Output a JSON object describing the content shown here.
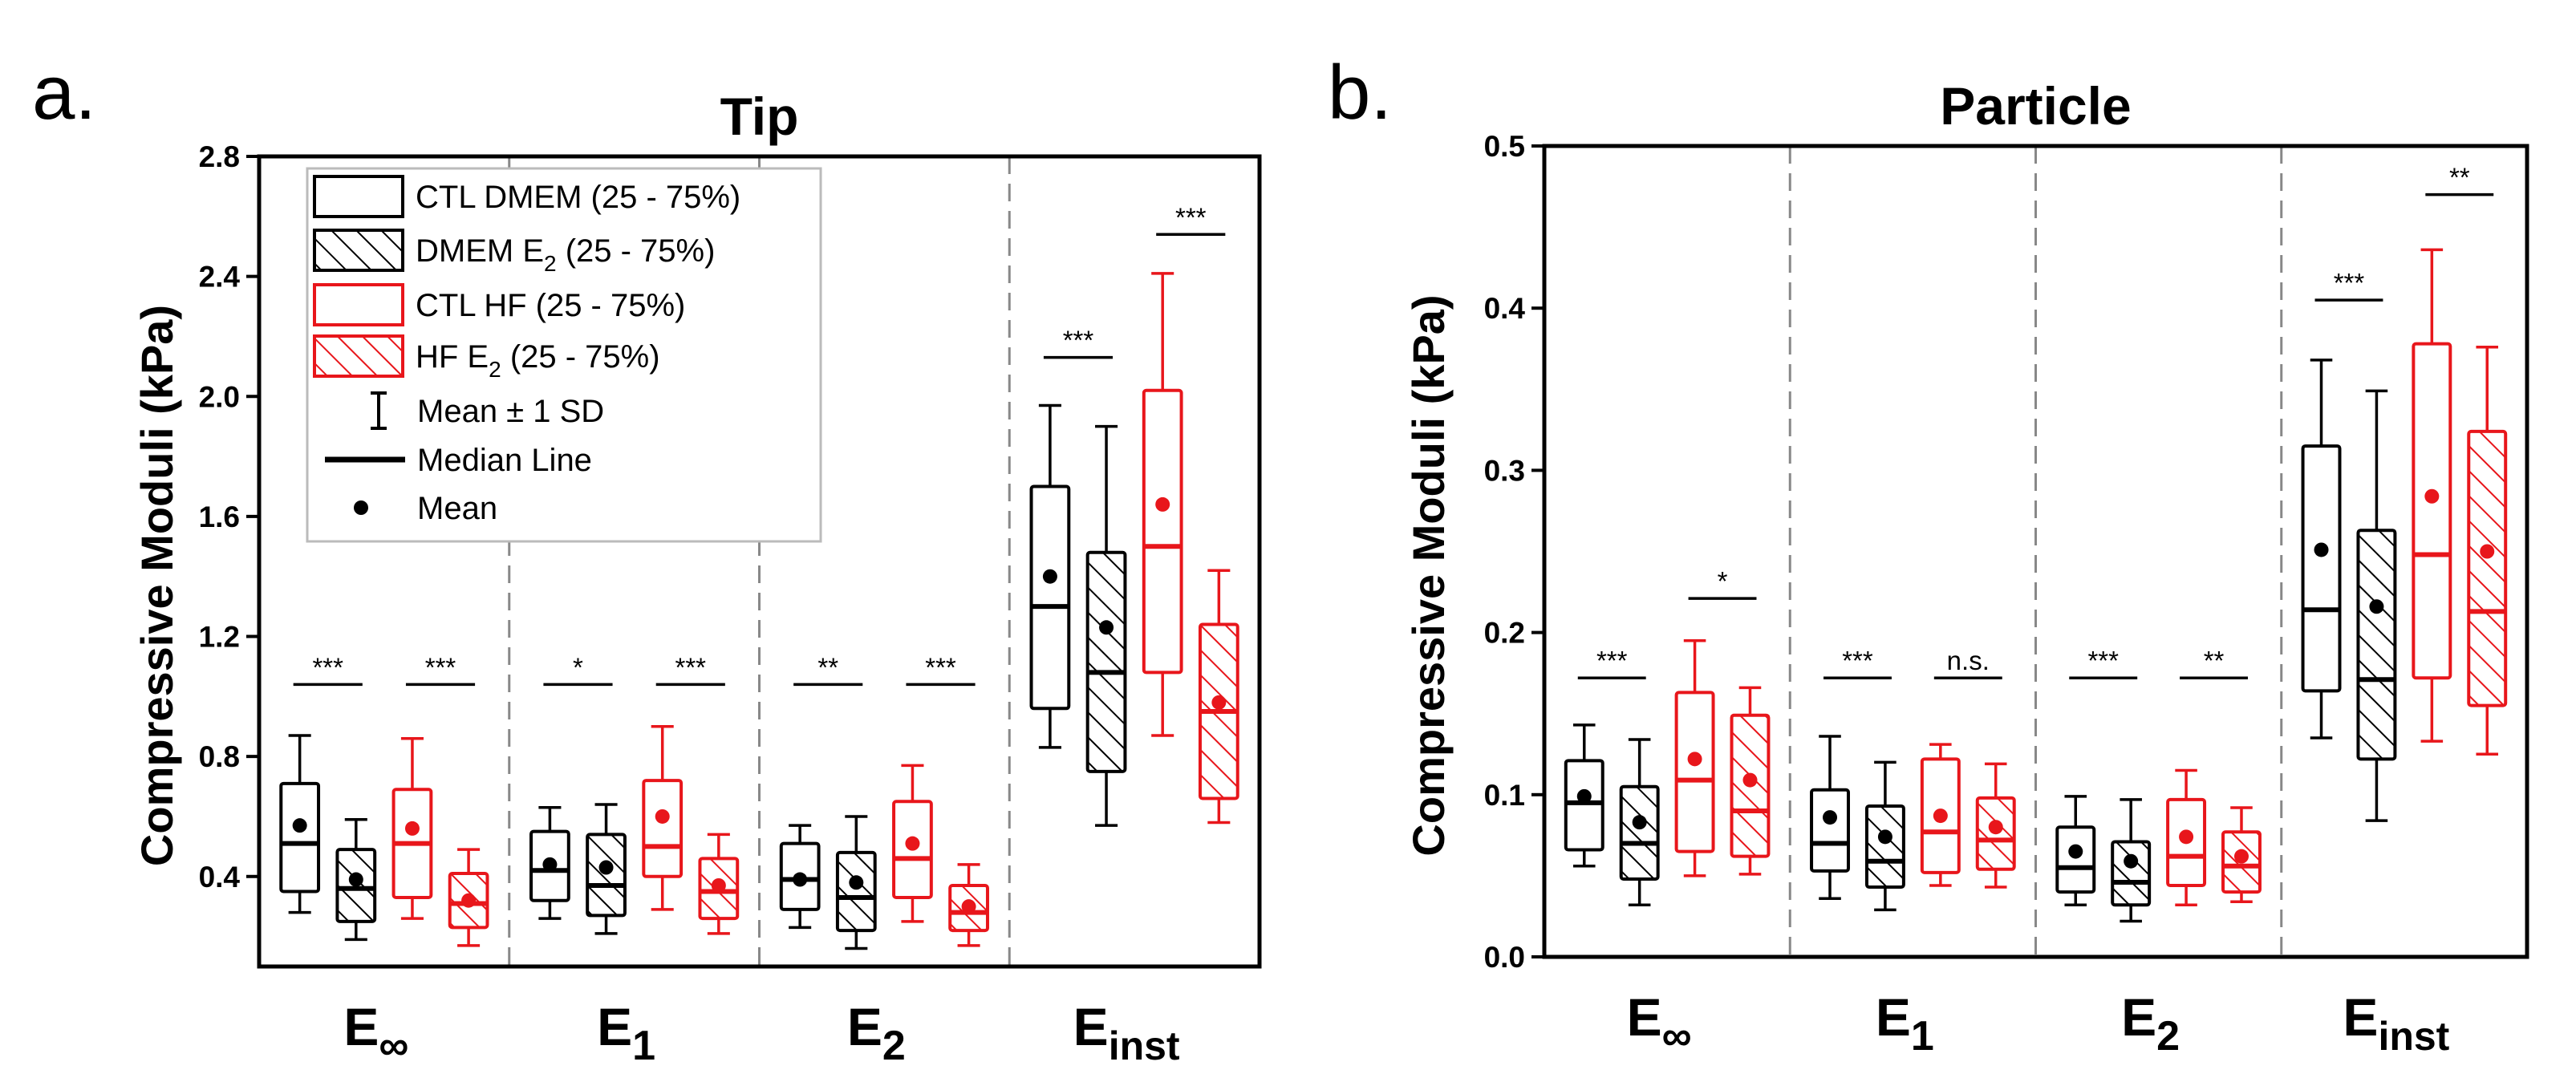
{
  "figure": {
    "colors": {
      "ctl": "#000000",
      "hf": "#e8161b"
    },
    "legend": [
      {
        "label": "CTL DMEM (25 - 75%)",
        "sub": "",
        "suffix": "",
        "style": "box",
        "color": "#000000",
        "hatch": false
      },
      {
        "label": "DMEM E",
        "sub": "2",
        "suffix": " (25 - 75%)",
        "style": "box",
        "color": "#000000",
        "hatch": true
      },
      {
        "label": "CTL HF (25 - 75%)",
        "sub": "",
        "suffix": "",
        "style": "box",
        "color": "#e8161b",
        "hatch": false
      },
      {
        "label": "HF E",
        "sub": "2",
        "suffix": " (25 - 75%)",
        "style": "box",
        "color": "#e8161b",
        "hatch": true
      },
      {
        "label": "Mean ± 1 SD",
        "sub": "",
        "suffix": "",
        "style": "errorbar",
        "color": "#000000",
        "hatch": false
      },
      {
        "label": "Median Line",
        "sub": "",
        "suffix": "",
        "style": "line",
        "color": "#000000",
        "hatch": false
      },
      {
        "label": "Mean",
        "sub": "",
        "suffix": "",
        "style": "dot",
        "color": "#000000",
        "hatch": false
      }
    ]
  },
  "chart_data": [
    {
      "type": "box",
      "panel_letter": "a.",
      "title": "Tip",
      "ylabel": "Compressive Moduli (kPa)",
      "ylim": [
        0.1,
        2.8
      ],
      "yticks": [
        "0.4",
        "0.8",
        "1.2",
        "1.6",
        "2.0",
        "2.4",
        "2.8"
      ],
      "ytick_values": [
        0.4,
        0.8,
        1.2,
        1.6,
        2.0,
        2.4,
        2.8
      ],
      "legend_placement": "top-left",
      "group_separators": "dashed",
      "groups": [
        {
          "label": "E",
          "sub": "∞"
        },
        {
          "label": "E",
          "sub": "1"
        },
        {
          "label": "E",
          "sub": "2"
        },
        {
          "label": "E",
          "sub": "inst"
        }
      ],
      "series": [
        "CTL DMEM",
        "DMEM E2",
        "CTL HF",
        "HF E2"
      ],
      "boxes": [
        {
          "group": 0,
          "series": 0,
          "whisker_low": 0.28,
          "q1": 0.35,
          "median": 0.51,
          "q3": 0.71,
          "whisker_high": 0.87,
          "mean": 0.57
        },
        {
          "group": 0,
          "series": 1,
          "whisker_low": 0.19,
          "q1": 0.25,
          "median": 0.36,
          "q3": 0.49,
          "whisker_high": 0.59,
          "mean": 0.39
        },
        {
          "group": 0,
          "series": 2,
          "whisker_low": 0.26,
          "q1": 0.33,
          "median": 0.51,
          "q3": 0.69,
          "whisker_high": 0.86,
          "mean": 0.56
        },
        {
          "group": 0,
          "series": 3,
          "whisker_low": 0.17,
          "q1": 0.23,
          "median": 0.31,
          "q3": 0.41,
          "whisker_high": 0.49,
          "mean": 0.32
        },
        {
          "group": 1,
          "series": 0,
          "whisker_low": 0.26,
          "q1": 0.32,
          "median": 0.42,
          "q3": 0.55,
          "whisker_high": 0.63,
          "mean": 0.44
        },
        {
          "group": 1,
          "series": 1,
          "whisker_low": 0.21,
          "q1": 0.27,
          "median": 0.37,
          "q3": 0.54,
          "whisker_high": 0.64,
          "mean": 0.43
        },
        {
          "group": 1,
          "series": 2,
          "whisker_low": 0.29,
          "q1": 0.4,
          "median": 0.5,
          "q3": 0.72,
          "whisker_high": 0.9,
          "mean": 0.6
        },
        {
          "group": 1,
          "series": 3,
          "whisker_low": 0.21,
          "q1": 0.26,
          "median": 0.35,
          "q3": 0.46,
          "whisker_high": 0.54,
          "mean": 0.37
        },
        {
          "group": 2,
          "series": 0,
          "whisker_low": 0.23,
          "q1": 0.29,
          "median": 0.39,
          "q3": 0.51,
          "whisker_high": 0.57,
          "mean": 0.39
        },
        {
          "group": 2,
          "series": 1,
          "whisker_low": 0.16,
          "q1": 0.22,
          "median": 0.33,
          "q3": 0.48,
          "whisker_high": 0.6,
          "mean": 0.38
        },
        {
          "group": 2,
          "series": 2,
          "whisker_low": 0.25,
          "q1": 0.33,
          "median": 0.46,
          "q3": 0.65,
          "whisker_high": 0.77,
          "mean": 0.51
        },
        {
          "group": 2,
          "series": 3,
          "whisker_low": 0.17,
          "q1": 0.22,
          "median": 0.28,
          "q3": 0.37,
          "whisker_high": 0.44,
          "mean": 0.3
        },
        {
          "group": 3,
          "series": 0,
          "whisker_low": 0.83,
          "q1": 0.96,
          "median": 1.3,
          "q3": 1.7,
          "whisker_high": 1.97,
          "mean": 1.4
        },
        {
          "group": 3,
          "series": 1,
          "whisker_low": 0.57,
          "q1": 0.75,
          "median": 1.08,
          "q3": 1.48,
          "whisker_high": 1.9,
          "mean": 1.23
        },
        {
          "group": 3,
          "series": 2,
          "whisker_low": 0.87,
          "q1": 1.08,
          "median": 1.5,
          "q3": 2.02,
          "whisker_high": 2.41,
          "mean": 1.64
        },
        {
          "group": 3,
          "series": 3,
          "whisker_low": 0.58,
          "q1": 0.66,
          "median": 0.95,
          "q3": 1.24,
          "whisker_high": 1.42,
          "mean": 0.98
        }
      ],
      "significance": [
        {
          "group": 0,
          "pair": "ctl",
          "label": "***",
          "y": 1.04
        },
        {
          "group": 0,
          "pair": "hf",
          "label": "***",
          "y": 1.04
        },
        {
          "group": 1,
          "pair": "ctl",
          "label": "*",
          "y": 1.04
        },
        {
          "group": 1,
          "pair": "hf",
          "label": "***",
          "y": 1.04
        },
        {
          "group": 2,
          "pair": "ctl",
          "label": "**",
          "y": 1.04
        },
        {
          "group": 2,
          "pair": "hf",
          "label": "***",
          "y": 1.04
        },
        {
          "group": 3,
          "pair": "ctl",
          "label": "***",
          "y": 2.13
        },
        {
          "group": 3,
          "pair": "hf",
          "label": "***",
          "y": 2.54
        }
      ]
    },
    {
      "type": "box",
      "panel_letter": "b.",
      "title": "Particle",
      "ylabel": "Compressive Moduli (kPa)",
      "ylim": [
        0.0,
        0.5
      ],
      "yticks": [
        "0.0",
        "0.1",
        "0.2",
        "0.3",
        "0.4",
        "0.5"
      ],
      "ytick_values": [
        0.0,
        0.1,
        0.2,
        0.3,
        0.4,
        0.5
      ],
      "legend_placement": "none",
      "group_separators": "dashed",
      "groups": [
        {
          "label": "E",
          "sub": "∞"
        },
        {
          "label": "E",
          "sub": "1"
        },
        {
          "label": "E",
          "sub": "2"
        },
        {
          "label": "E",
          "sub": "inst"
        }
      ],
      "series": [
        "CTL DMEM",
        "DMEM E2",
        "CTL HF",
        "HF E2"
      ],
      "boxes": [
        {
          "group": 0,
          "series": 0,
          "whisker_low": 0.056,
          "q1": 0.066,
          "median": 0.095,
          "q3": 0.121,
          "whisker_high": 0.143,
          "mean": 0.099
        },
        {
          "group": 0,
          "series": 1,
          "whisker_low": 0.032,
          "q1": 0.048,
          "median": 0.07,
          "q3": 0.105,
          "whisker_high": 0.134,
          "mean": 0.083
        },
        {
          "group": 0,
          "series": 2,
          "whisker_low": 0.05,
          "q1": 0.065,
          "median": 0.109,
          "q3": 0.163,
          "whisker_high": 0.195,
          "mean": 0.122
        },
        {
          "group": 0,
          "series": 3,
          "whisker_low": 0.051,
          "q1": 0.062,
          "median": 0.09,
          "q3": 0.149,
          "whisker_high": 0.166,
          "mean": 0.109
        },
        {
          "group": 1,
          "series": 0,
          "whisker_low": 0.036,
          "q1": 0.053,
          "median": 0.07,
          "q3": 0.103,
          "whisker_high": 0.136,
          "mean": 0.086
        },
        {
          "group": 1,
          "series": 1,
          "whisker_low": 0.029,
          "q1": 0.043,
          "median": 0.059,
          "q3": 0.093,
          "whisker_high": 0.12,
          "mean": 0.074
        },
        {
          "group": 1,
          "series": 2,
          "whisker_low": 0.044,
          "q1": 0.052,
          "median": 0.077,
          "q3": 0.122,
          "whisker_high": 0.131,
          "mean": 0.087
        },
        {
          "group": 1,
          "series": 3,
          "whisker_low": 0.043,
          "q1": 0.054,
          "median": 0.072,
          "q3": 0.098,
          "whisker_high": 0.119,
          "mean": 0.08
        },
        {
          "group": 2,
          "series": 0,
          "whisker_low": 0.032,
          "q1": 0.04,
          "median": 0.055,
          "q3": 0.08,
          "whisker_high": 0.099,
          "mean": 0.065
        },
        {
          "group": 2,
          "series": 1,
          "whisker_low": 0.022,
          "q1": 0.032,
          "median": 0.046,
          "q3": 0.071,
          "whisker_high": 0.097,
          "mean": 0.059
        },
        {
          "group": 2,
          "series": 2,
          "whisker_low": 0.032,
          "q1": 0.044,
          "median": 0.062,
          "q3": 0.097,
          "whisker_high": 0.115,
          "mean": 0.074
        },
        {
          "group": 2,
          "series": 3,
          "whisker_low": 0.034,
          "q1": 0.04,
          "median": 0.056,
          "q3": 0.077,
          "whisker_high": 0.092,
          "mean": 0.062
        },
        {
          "group": 3,
          "series": 0,
          "whisker_low": 0.135,
          "q1": 0.164,
          "median": 0.214,
          "q3": 0.315,
          "whisker_high": 0.368,
          "mean": 0.251
        },
        {
          "group": 3,
          "series": 1,
          "whisker_low": 0.084,
          "q1": 0.122,
          "median": 0.171,
          "q3": 0.263,
          "whisker_high": 0.349,
          "mean": 0.216
        },
        {
          "group": 3,
          "series": 2,
          "whisker_low": 0.133,
          "q1": 0.172,
          "median": 0.248,
          "q3": 0.378,
          "whisker_high": 0.436,
          "mean": 0.284
        },
        {
          "group": 3,
          "series": 3,
          "whisker_low": 0.125,
          "q1": 0.155,
          "median": 0.213,
          "q3": 0.324,
          "whisker_high": 0.376,
          "mean": 0.25
        }
      ],
      "significance": [
        {
          "group": 0,
          "pair": "ctl",
          "label": "***",
          "y": 0.172
        },
        {
          "group": 0,
          "pair": "hf",
          "label": "*",
          "y": 0.221
        },
        {
          "group": 1,
          "pair": "ctl",
          "label": "***",
          "y": 0.172
        },
        {
          "group": 1,
          "pair": "hf",
          "label": "n.s.",
          "y": 0.172
        },
        {
          "group": 2,
          "pair": "ctl",
          "label": "***",
          "y": 0.172
        },
        {
          "group": 2,
          "pair": "hf",
          "label": "**",
          "y": 0.172
        },
        {
          "group": 3,
          "pair": "ctl",
          "label": "***",
          "y": 0.405
        },
        {
          "group": 3,
          "pair": "hf",
          "label": "**",
          "y": 0.47
        }
      ]
    }
  ]
}
